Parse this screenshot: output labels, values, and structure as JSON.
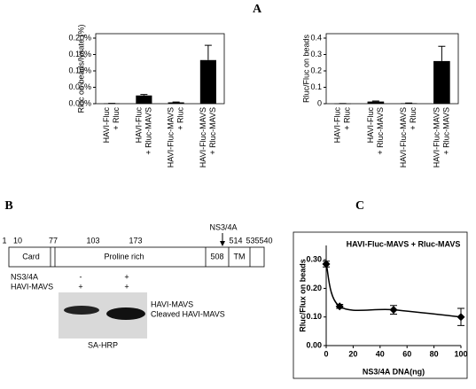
{
  "panel_labels": [
    "A",
    "B",
    "C"
  ],
  "chart_data": [
    {
      "type": "bar",
      "ylabel": "Rluc on beads/lysate (%)",
      "categories": [
        "HAVI-Fluc\n+ Rluc",
        "HAVI-Fluc\n+ Rluc-MAVS",
        "HAVI-Fluc-MAVS\n+ Rluc",
        "HAVI-Fluc-MAVS\n+ Rluc-MAVS"
      ],
      "values": [
        0.001,
        0.025,
        0.004,
        0.133
      ],
      "errors": [
        0,
        0.003,
        0.001,
        0.045
      ],
      "color": "#000000",
      "ylim": [
        0,
        0.2
      ],
      "yticks": [
        {
          "value": 0,
          "label": "0.00%"
        },
        {
          "value": 0.05,
          "label": "0.05%"
        },
        {
          "value": 0.1,
          "label": "0.10%"
        },
        {
          "value": 0.15,
          "label": "0.15%"
        },
        {
          "value": 0.2,
          "label": "0.20%"
        }
      ]
    },
    {
      "type": "bar",
      "ylabel": "Rluc/Fluc on beads",
      "categories": [
        "HAVI-Fluc\n+ Rluc",
        "HAVI-Fluc\n+ Rluc-MAVS",
        "HAVI-Fluc-MAVS\n+ Rluc",
        "HAVI-Fluc-MAVS\n+ Rluc-MAVS"
      ],
      "values": [
        0.001,
        0.013,
        0.003,
        0.26
      ],
      "errors": [
        0,
        0.003,
        0.001,
        0.09
      ],
      "color": "#000000",
      "ylim": [
        0,
        0.4
      ],
      "yticks": [
        0,
        0.1,
        0.2,
        0.3,
        0.4
      ]
    },
    {
      "type": "line",
      "title": "HAVI-Fluc-MAVS + Rluc-MAVS",
      "xlabel": "NS3/4A DNA(ng)",
      "ylabel": "Rluc/Flux on beads",
      "x": [
        0,
        10,
        50,
        100
      ],
      "values": [
        0.285,
        0.137,
        0.125,
        0.1
      ],
      "errors": [
        0.01,
        0.007,
        0.015,
        0.03
      ],
      "color": "#000000",
      "xlim": [
        0,
        100
      ],
      "xticks": [
        0,
        20,
        40,
        60,
        80,
        100
      ],
      "ylim": [
        0,
        0.35
      ],
      "yticks": [
        {
          "value": 0,
          "label": "0.00"
        },
        {
          "value": 0.1,
          "label": "0.10"
        },
        {
          "value": 0.2,
          "label": "0.20"
        },
        {
          "value": 0.3,
          "label": "0.30"
        }
      ]
    }
  ],
  "diagram": {
    "positions": [
      "1",
      "10",
      "77",
      "103",
      "173",
      "514",
      "535",
      "540"
    ],
    "inner_position": "508",
    "domains": [
      "Card",
      "Proline rich",
      "TM"
    ],
    "cleavage": "NS3/4A",
    "rows": [
      {
        "label": "NS3/4A",
        "marks": [
          "-",
          "+"
        ]
      },
      {
        "label": "HAVI-MAVS",
        "marks": [
          "+",
          "+"
        ]
      }
    ],
    "band_labels": [
      "HAVI-MAVS",
      "Cleaved HAVI-MAVS"
    ],
    "blot_label": "SA-HRP"
  }
}
